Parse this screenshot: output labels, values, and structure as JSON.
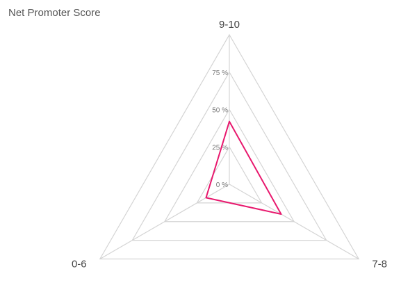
{
  "chart_data": {
    "type": "radar",
    "title": "Net Promoter Score",
    "categories": [
      "9-10",
      "7-8",
      "0-6"
    ],
    "series": [
      {
        "values": [
          42,
          40,
          18
        ],
        "color": "#e8196e"
      }
    ],
    "range": [
      0,
      100
    ],
    "tick_values": [
      0,
      25,
      50,
      75
    ],
    "tick_labels": [
      "0 %",
      "25 %",
      "50 %",
      "75 %"
    ],
    "grid": true,
    "grid_color": "#d4d4d4"
  }
}
